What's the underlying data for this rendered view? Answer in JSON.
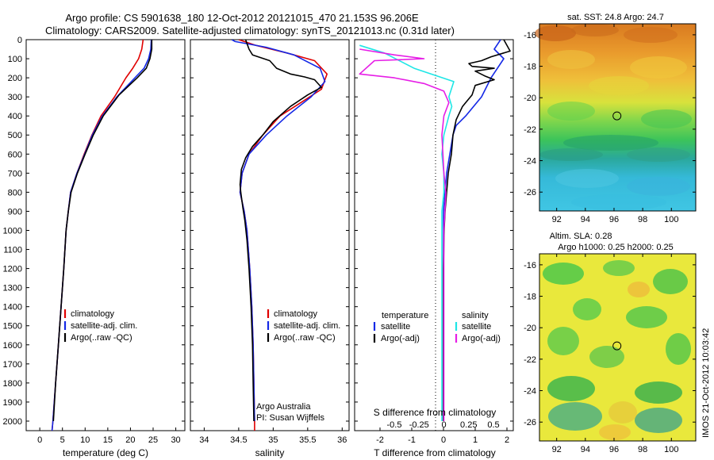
{
  "header": {
    "line1": "Argo profile: CS 5901638_180 12-Oct-2012 20121015_470 21.153S 96.206E",
    "line2": "Climatology: CARS2009. Satellite-adjusted climatology: synTS_20121013.nc (0.31d later)"
  },
  "colors": {
    "climatology": "#e00000",
    "satellite": "#1428e6",
    "argo": "#000000",
    "satellite_salinity": "#1ee6e6",
    "argo_salinity": "#e61ee6"
  },
  "chart_data": [
    {
      "type": "line",
      "name": "temperature-panel",
      "xlabel": "temperature (deg C)",
      "xticks": [
        0,
        5,
        10,
        15,
        20,
        25,
        30
      ],
      "xlim": [
        -3,
        32
      ],
      "ylim": [
        0,
        2050
      ],
      "yticks": [
        0,
        100,
        200,
        300,
        400,
        500,
        600,
        700,
        800,
        900,
        1000,
        1100,
        1200,
        1300,
        1400,
        1500,
        1600,
        1700,
        1800,
        1900,
        2000
      ],
      "legend": [
        "climatology",
        "satellite-adj. clim.",
        "Argo(..raw -QC)"
      ],
      "series": [
        {
          "name": "climatology",
          "color": "#e00000",
          "points": [
            [
              22.8,
              0
            ],
            [
              22.5,
              50
            ],
            [
              21.8,
              100
            ],
            [
              20.5,
              150
            ],
            [
              19,
              200
            ],
            [
              16.5,
              300
            ],
            [
              13.5,
              400
            ],
            [
              11.5,
              500
            ],
            [
              9.8,
              600
            ],
            [
              8.2,
              700
            ],
            [
              6.8,
              800
            ],
            [
              6.3,
              900
            ],
            [
              5.8,
              1000
            ],
            [
              5.3,
              1200
            ],
            [
              4.7,
              1400
            ],
            [
              4.1,
              1600
            ],
            [
              3.5,
              1800
            ],
            [
              2.9,
              2000
            ],
            [
              2.7,
              2050
            ]
          ]
        },
        {
          "name": "satellite-adj. clim.",
          "color": "#1428e6",
          "points": [
            [
              24.6,
              0
            ],
            [
              24.5,
              50
            ],
            [
              24,
              100
            ],
            [
              23,
              150
            ],
            [
              21,
              200
            ],
            [
              17,
              300
            ],
            [
              13.8,
              400
            ],
            [
              11.6,
              500
            ],
            [
              9.9,
              600
            ],
            [
              8.2,
              700
            ],
            [
              6.8,
              800
            ],
            [
              6.3,
              900
            ],
            [
              5.8,
              1000
            ],
            [
              5.3,
              1200
            ],
            [
              4.7,
              1400
            ],
            [
              4.1,
              1600
            ],
            [
              3.5,
              1800
            ],
            [
              2.9,
              2000
            ],
            [
              2.7,
              2050
            ]
          ]
        },
        {
          "name": "Argo(..raw -QC)",
          "color": "#000000",
          "points": [
            [
              24.7,
              0
            ],
            [
              24.7,
              50
            ],
            [
              24.3,
              100
            ],
            [
              23.5,
              150
            ],
            [
              21.5,
              200
            ],
            [
              17.5,
              290
            ],
            [
              14,
              400
            ],
            [
              11.8,
              500
            ],
            [
              10,
              600
            ],
            [
              8.3,
              700
            ],
            [
              6.9,
              800
            ],
            [
              6.3,
              900
            ],
            [
              5.8,
              1000
            ],
            [
              5.3,
              1200
            ],
            [
              4.7,
              1400
            ],
            [
              4.1,
              1600
            ],
            [
              3.5,
              1800
            ],
            [
              3,
              2000
            ]
          ]
        }
      ]
    },
    {
      "type": "line",
      "name": "salinity-panel",
      "xlabel": "salinity",
      "xticks": [
        34,
        34.5,
        35,
        35.5,
        36
      ],
      "xlim": [
        33.8,
        36.1
      ],
      "ylim": [
        0,
        2050
      ],
      "legend": [
        "climatology",
        "satellite-adj. clim.",
        "Argo(..raw -QC)"
      ],
      "annotation": [
        "Argo Australia",
        "PI: Susan Wijffels"
      ],
      "series": [
        {
          "name": "climatology",
          "color": "#e00000",
          "points": [
            [
              34.5,
              0
            ],
            [
              34.75,
              30
            ],
            [
              35.2,
              70
            ],
            [
              35.6,
              110
            ],
            [
              35.78,
              180
            ],
            [
              35.7,
              260
            ],
            [
              35.4,
              330
            ],
            [
              35.1,
              400
            ],
            [
              34.85,
              500
            ],
            [
              34.65,
              600
            ],
            [
              34.55,
              700
            ],
            [
              34.52,
              800
            ],
            [
              34.58,
              900
            ],
            [
              34.62,
              1000
            ],
            [
              34.66,
              1200
            ],
            [
              34.69,
              1400
            ],
            [
              34.71,
              1600
            ],
            [
              34.72,
              1800
            ],
            [
              34.73,
              2000
            ],
            [
              34.73,
              2050
            ]
          ]
        },
        {
          "name": "satellite-adj. clim.",
          "color": "#1428e6",
          "points": [
            [
              34.4,
              0
            ],
            [
              34.45,
              10
            ],
            [
              34.9,
              40
            ],
            [
              35.3,
              80
            ],
            [
              35.68,
              150
            ],
            [
              35.75,
              220
            ],
            [
              35.55,
              300
            ],
            [
              35.2,
              400
            ],
            [
              34.9,
              500
            ],
            [
              34.65,
              600
            ],
            [
              34.55,
              700
            ],
            [
              34.52,
              800
            ],
            [
              34.58,
              900
            ],
            [
              34.62,
              1000
            ],
            [
              34.66,
              1200
            ],
            [
              34.69,
              1400
            ],
            [
              34.71,
              1600
            ],
            [
              34.72,
              1800
            ],
            [
              34.73,
              2000
            ]
          ]
        },
        {
          "name": "Argo(..raw -QC)",
          "color": "#000000",
          "points": [
            [
              34.6,
              0
            ],
            [
              34.62,
              20
            ],
            [
              34.65,
              50
            ],
            [
              34.7,
              80
            ],
            [
              34.95,
              110
            ],
            [
              35.05,
              150
            ],
            [
              35.25,
              180
            ],
            [
              35.45,
              195
            ],
            [
              35.6,
              210
            ],
            [
              35.7,
              250
            ],
            [
              35.5,
              290
            ],
            [
              35.25,
              350
            ],
            [
              35.0,
              430
            ],
            [
              34.85,
              500
            ],
            [
              34.7,
              560
            ],
            [
              34.6,
              620
            ],
            [
              34.54,
              680
            ],
            [
              34.52,
              760
            ],
            [
              34.53,
              800
            ],
            [
              34.56,
              880
            ],
            [
              34.59,
              950
            ],
            [
              34.62,
              1050
            ],
            [
              34.65,
              1200
            ],
            [
              34.68,
              1400
            ],
            [
              34.7,
              1600
            ],
            [
              34.71,
              1800
            ],
            [
              34.72,
              2000
            ]
          ]
        }
      ]
    },
    {
      "type": "line",
      "name": "difference-panel",
      "top_label": "S difference from climatology",
      "top_ticks": [
        "-0.5",
        "-0.25",
        "0",
        "0.25",
        "0.5"
      ],
      "top_tick_values": [
        -0.5,
        -0.25,
        0,
        0.25,
        0.5
      ],
      "top_range": [
        -0.9,
        0.7
      ],
      "xlabel": "T difference from climatology",
      "xticks": [
        -2,
        -1,
        0,
        1,
        2
      ],
      "xlim": [
        -2.8,
        2.2
      ],
      "ylim": [
        0,
        2050
      ],
      "legend_temperature": {
        "title": "temperature",
        "items": [
          "satellite",
          "Argo(-adj)"
        ]
      },
      "legend_salinity": {
        "title": "salinity",
        "items": [
          "satellite",
          "Argo(-adj)"
        ]
      },
      "series": [
        {
          "name": "temperature satellite",
          "color": "#1428e6",
          "axis": "T",
          "points": [
            [
              1.8,
              0
            ],
            [
              1.6,
              50
            ],
            [
              1.9,
              100
            ],
            [
              1.7,
              150
            ],
            [
              1.5,
              200
            ],
            [
              1.2,
              300
            ],
            [
              0.7,
              400
            ],
            [
              0.4,
              450
            ],
            [
              0.3,
              500
            ],
            [
              0.2,
              600
            ],
            [
              0.1,
              700
            ],
            [
              0.05,
              800
            ],
            [
              0,
              900
            ],
            [
              0,
              1000
            ],
            [
              0,
              1200
            ],
            [
              0,
              1400
            ],
            [
              0,
              1600
            ],
            [
              0,
              1800
            ],
            [
              0,
              2000
            ]
          ]
        },
        {
          "name": "temperature Argo(-adj)",
          "color": "#000000",
          "axis": "T",
          "points": [
            [
              1.9,
              0
            ],
            [
              2.1,
              60
            ],
            [
              1.5,
              90
            ],
            [
              1.2,
              110
            ],
            [
              0.8,
              125
            ],
            [
              0.9,
              140
            ],
            [
              1.6,
              150
            ],
            [
              1.0,
              165
            ],
            [
              1.3,
              190
            ],
            [
              1.6,
              210
            ],
            [
              1.0,
              240
            ],
            [
              0.9,
              290
            ],
            [
              0.6,
              350
            ],
            [
              0.4,
              420
            ],
            [
              0.3,
              500
            ],
            [
              0.25,
              600
            ],
            [
              0.15,
              700
            ],
            [
              0.1,
              800
            ],
            [
              0.05,
              900
            ],
            [
              0.02,
              1000
            ],
            [
              0,
              1200
            ],
            [
              0,
              1400
            ],
            [
              0,
              1600
            ],
            [
              0,
              1800
            ],
            [
              0,
              2000
            ]
          ]
        },
        {
          "name": "salinity satellite",
          "color": "#1ee6e6",
          "axis": "S",
          "points": [
            [
              -0.85,
              30
            ],
            [
              -0.6,
              70
            ],
            [
              -0.3,
              150
            ],
            [
              0.1,
              220
            ],
            [
              0.05,
              300
            ],
            [
              0.08,
              350
            ],
            [
              0.05,
              400
            ],
            [
              0,
              500
            ],
            [
              -0.02,
              600
            ],
            [
              0,
              700
            ],
            [
              0,
              800
            ],
            [
              -0.02,
              900
            ],
            [
              -0.02,
              1000
            ],
            [
              -0.02,
              1200
            ],
            [
              -0.02,
              1400
            ],
            [
              -0.02,
              1600
            ],
            [
              -0.02,
              1800
            ],
            [
              -0.02,
              2000
            ]
          ]
        },
        {
          "name": "salinity Argo(-adj)",
          "color": "#e61ee6",
          "axis": "S",
          "points": [
            [
              -0.85,
              50
            ],
            [
              -0.5,
              80
            ],
            [
              -0.2,
              100
            ],
            [
              -0.7,
              110
            ],
            [
              -0.85,
              180
            ],
            [
              -0.5,
              200
            ],
            [
              -0.2,
              230
            ],
            [
              0,
              270
            ],
            [
              0.05,
              330
            ],
            [
              0,
              400
            ],
            [
              -0.02,
              500
            ],
            [
              -0.01,
              600
            ],
            [
              0,
              700
            ],
            [
              0.02,
              800
            ],
            [
              0.01,
              900
            ],
            [
              0,
              1000
            ],
            [
              0,
              1200
            ],
            [
              0,
              1400
            ],
            [
              0,
              1600
            ],
            [
              0,
              1800
            ],
            [
              0,
              2000
            ]
          ]
        }
      ]
    }
  ],
  "maps": {
    "sst": {
      "title": "sat. SST: 24.8 Argo: 24.7",
      "xticks": [
        92,
        94,
        96,
        98,
        100
      ],
      "yticks": [
        -16,
        -18,
        -20,
        -22,
        -24,
        -26
      ],
      "lon": [
        90.8,
        101.7
      ],
      "lat": [
        -15.3,
        -27.2
      ],
      "marker": [
        96.206,
        -21.153
      ]
    },
    "sla": {
      "title_line1": "Altim. SLA: 0.28",
      "title_line2": "Argo h1000: 0.25 h2000: 0.25",
      "xticks": [
        92,
        94,
        96,
        98,
        100
      ],
      "yticks": [
        -16,
        -18,
        -20,
        -22,
        -24,
        -26
      ],
      "lon": [
        90.8,
        101.7
      ],
      "lat": [
        -15.3,
        -27.2
      ],
      "marker": [
        96.206,
        -21.153
      ]
    }
  },
  "footer": {
    "vertical_stamp": "IMOS 21-Oct-2012 10:03:42"
  }
}
